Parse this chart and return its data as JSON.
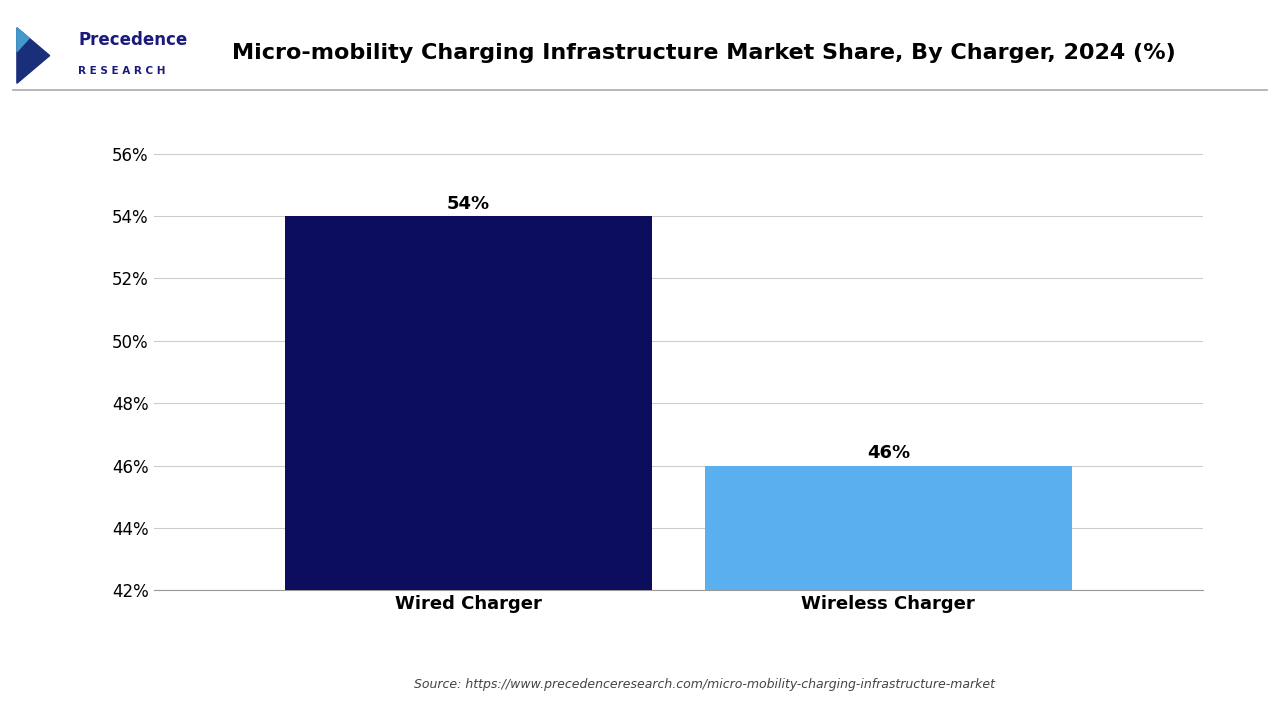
{
  "title": "Micro-mobility Charging Infrastructure Market Share, By Charger, 2024 (%)",
  "categories": [
    "Wired Charger",
    "Wireless Charger"
  ],
  "values": [
    54,
    46
  ],
  "bar_colors": [
    "#0d0d5e",
    "#5aafee"
  ],
  "ylim": [
    42,
    57
  ],
  "yticks": [
    42,
    44,
    46,
    48,
    50,
    52,
    54,
    56
  ],
  "ytick_labels": [
    "42%",
    "44%",
    "46%",
    "48%",
    "50%",
    "52%",
    "54%",
    "56%"
  ],
  "bar_width": 0.35,
  "value_labels": [
    "54%",
    "46%"
  ],
  "source_text": "Source: https://www.precedenceresearch.com/micro-mobility-charging-infrastructure-market",
  "background_color": "#ffffff",
  "title_fontsize": 16,
  "tick_fontsize": 12,
  "label_fontsize": 13,
  "annotation_fontsize": 13
}
